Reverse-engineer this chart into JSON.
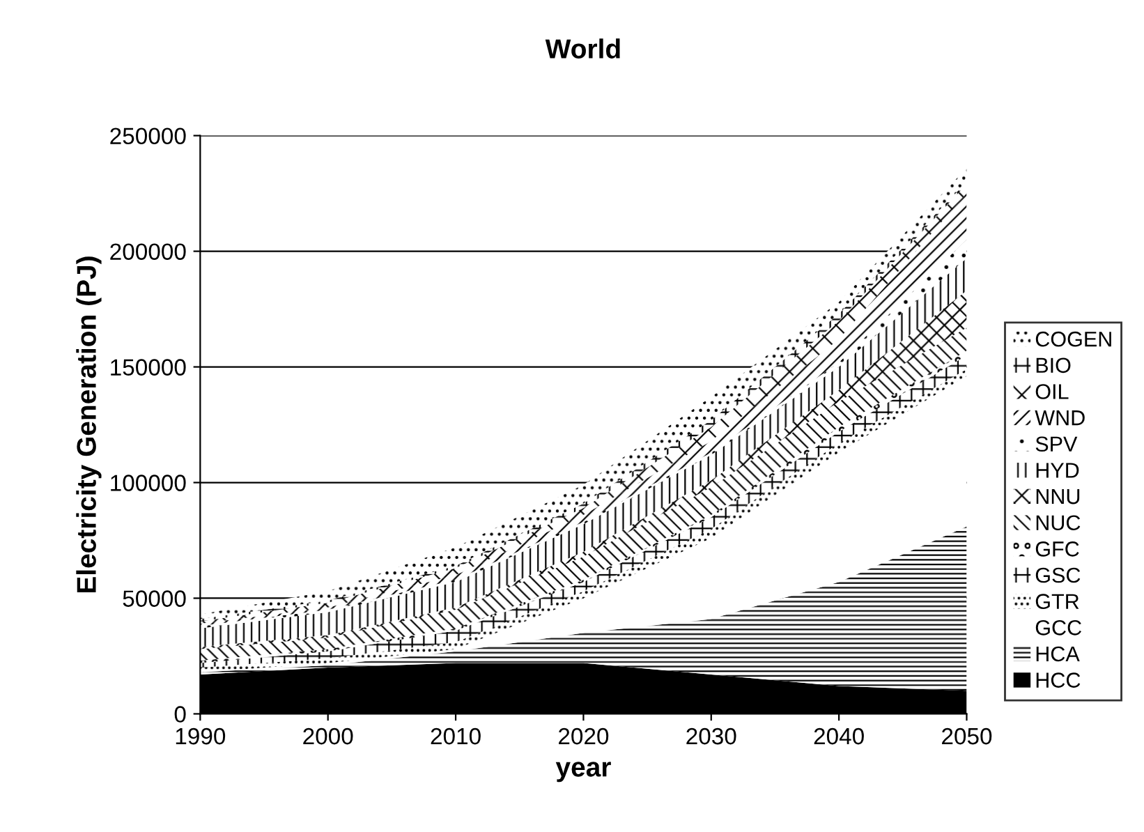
{
  "chart_data": {
    "type": "area",
    "stacked": true,
    "title": "World",
    "xlabel": "year",
    "ylabel": "Electricity Generation (PJ)",
    "x": [
      1990,
      2000,
      2010,
      2020,
      2030,
      2040,
      2050
    ],
    "xlim": [
      1990,
      2050
    ],
    "xticks": [
      1990,
      2000,
      2010,
      2020,
      2030,
      2040,
      2050
    ],
    "ylim": [
      0,
      250000
    ],
    "yticks": [
      0,
      50000,
      100000,
      150000,
      200000,
      250000
    ],
    "grid": "y",
    "legend": "right",
    "series": [
      {
        "name": "HCC",
        "color": "#000000",
        "values": [
          17000,
          20000,
          22000,
          22000,
          17000,
          12000,
          10000
        ]
      },
      {
        "name": "HCA",
        "color": "#ffffff",
        "values": [
          1000,
          1000,
          5000,
          13000,
          24000,
          45000,
          71000
        ]
      },
      {
        "name": "GCC",
        "color": "#ffffff",
        "values": [
          0,
          1000,
          1000,
          15000,
          35000,
          56000,
          65000
        ]
      },
      {
        "name": "GTR",
        "color": "#ffffff",
        "values": [
          2000,
          2000,
          3000,
          3000,
          4000,
          4000,
          3000
        ]
      },
      {
        "name": "GSC",
        "color": "#ffffff",
        "values": [
          2000,
          3000,
          5000,
          4000,
          5000,
          5000,
          6000
        ]
      },
      {
        "name": "GFC",
        "color": "#ffffff",
        "values": [
          1000,
          1000,
          1000,
          1000,
          1000,
          2000,
          2000
        ]
      },
      {
        "name": "NUC",
        "color": "#ffffff",
        "values": [
          5000,
          5000,
          8000,
          10000,
          12000,
          11000,
          10000
        ]
      },
      {
        "name": "NNU",
        "color": "#ffffff",
        "values": [
          1000,
          1000,
          1000,
          2000,
          3000,
          5000,
          16000
        ]
      },
      {
        "name": "HYD",
        "color": "#ffffff",
        "values": [
          8000,
          10000,
          11000,
          12000,
          11000,
          10000,
          14000
        ]
      },
      {
        "name": "SPV",
        "color": "#ffffff",
        "values": [
          1000,
          1000,
          1000,
          1000,
          1000,
          2000,
          8000
        ]
      },
      {
        "name": "WND",
        "color": "#ffffff",
        "values": [
          1000,
          1000,
          2000,
          3000,
          5000,
          10000,
          20000
        ]
      },
      {
        "name": "OIL",
        "color": "#ffffff",
        "values": [
          1000,
          2000,
          3000,
          3000,
          6000,
          8000,
          4000
        ]
      },
      {
        "name": "BIO",
        "color": "#ffffff",
        "values": [
          1000,
          1000,
          1000,
          2000,
          3000,
          3000,
          1000
        ]
      },
      {
        "name": "COGEN",
        "color": "#ffffff",
        "values": [
          2000,
          4000,
          8000,
          8000,
          10000,
          5000,
          6000
        ]
      }
    ]
  }
}
